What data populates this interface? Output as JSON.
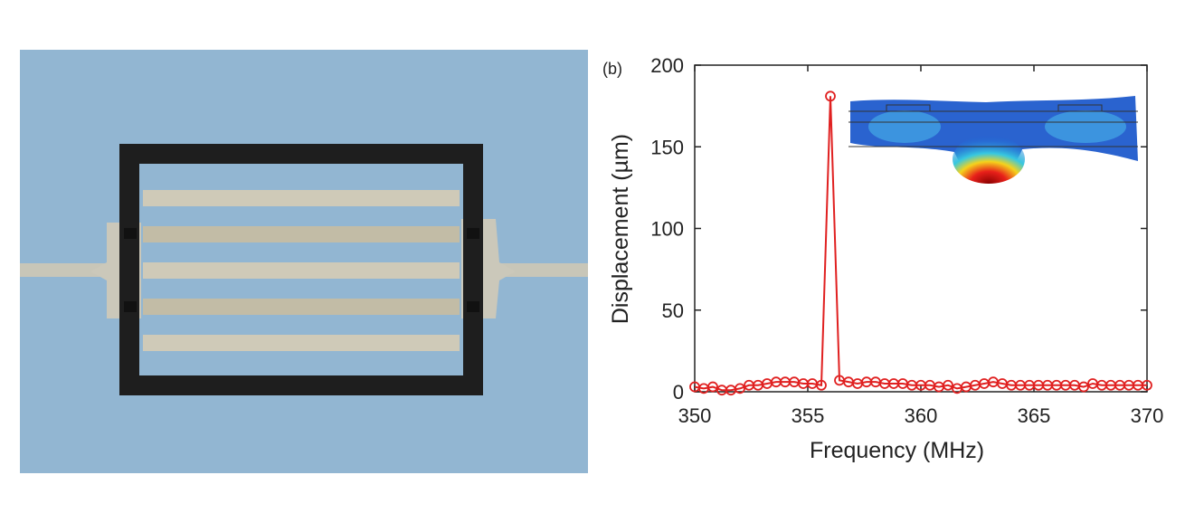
{
  "chart_data": {
    "type": "line",
    "panel_label": "(b)",
    "xlabel": "Frequency (MHz)",
    "ylabel": "Displacement (µm)",
    "x": [
      350,
      350.4,
      350.8,
      351.2,
      351.6,
      352,
      352.4,
      352.8,
      353.2,
      353.6,
      354,
      354.4,
      354.8,
      355.2,
      355.6,
      356,
      356.4,
      356.8,
      357.2,
      357.6,
      358,
      358.4,
      358.8,
      359.2,
      359.6,
      360,
      360.4,
      360.8,
      361.2,
      361.6,
      362,
      362.4,
      362.8,
      363.2,
      363.6,
      364,
      364.4,
      364.8,
      365.2,
      365.6,
      366,
      366.4,
      366.8,
      367.2,
      367.6,
      368,
      368.4,
      368.8,
      369.2,
      369.6,
      370
    ],
    "values": [
      3,
      2,
      3,
      1,
      1,
      2,
      4,
      4,
      5,
      6,
      6,
      6,
      5,
      5,
      4,
      181,
      7,
      6,
      5,
      6,
      6,
      5,
      5,
      5,
      4,
      4,
      4,
      3,
      4,
      2,
      3,
      4,
      5,
      6,
      5,
      4,
      4,
      4,
      4,
      4,
      4,
      4,
      4,
      3,
      5,
      4,
      4,
      4,
      4,
      4,
      4
    ],
    "color": "#e02020",
    "marker": "circle",
    "xlim": [
      350,
      370
    ],
    "ylim": [
      0,
      200
    ],
    "xticks": [
      350,
      355,
      360,
      365,
      370
    ],
    "yticks": [
      0,
      50,
      100,
      150,
      200
    ]
  }
}
